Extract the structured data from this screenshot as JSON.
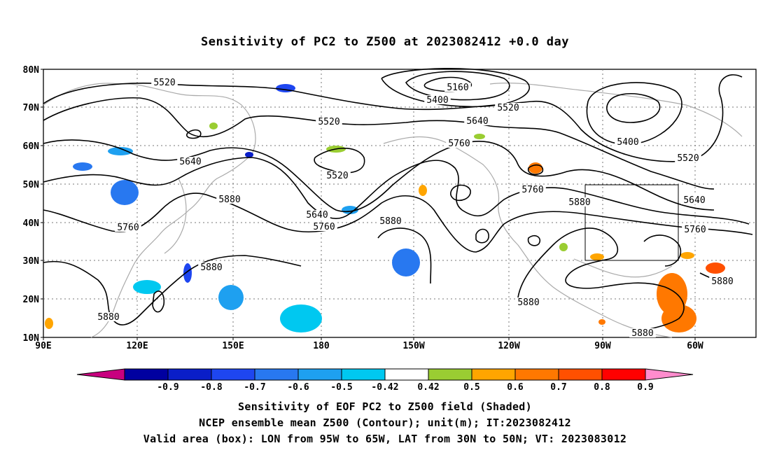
{
  "title": "Sensitivity of PC2 to Z500 at 2023082412 +0.0 day",
  "map": {
    "lat_labels": [
      "80N",
      "70N",
      "60N",
      "50N",
      "40N",
      "30N",
      "20N",
      "10N"
    ],
    "lon_labels": [
      "90E",
      "120E",
      "150E",
      "180",
      "150W",
      "120W",
      "90W",
      "60W"
    ],
    "contours": [
      {
        "value": "5160",
        "label": "5160"
      },
      {
        "value": "5400",
        "label": "5400"
      },
      {
        "value": "5400",
        "label": "5400"
      },
      {
        "value": "5520",
        "label": "5520"
      },
      {
        "value": "5520",
        "label": "5520"
      },
      {
        "value": "5520",
        "label": "5520"
      },
      {
        "value": "5520",
        "label": "5520"
      },
      {
        "value": "5520",
        "label": "5520"
      },
      {
        "value": "5640",
        "label": "5640"
      },
      {
        "value": "5640",
        "label": "5640"
      },
      {
        "value": "5640",
        "label": "5640"
      },
      {
        "value": "5640",
        "label": "5640"
      },
      {
        "value": "5760",
        "label": "5760"
      },
      {
        "value": "5760",
        "label": "5760"
      },
      {
        "value": "5760",
        "label": "5760"
      },
      {
        "value": "5760",
        "label": "5760"
      },
      {
        "value": "5760",
        "label": "5760"
      },
      {
        "value": "5880",
        "label": "5880"
      },
      {
        "value": "5880",
        "label": "5880"
      },
      {
        "value": "5880",
        "label": "5880"
      },
      {
        "value": "5880",
        "label": "5880"
      },
      {
        "value": "5880",
        "label": "5880"
      },
      {
        "value": "5880",
        "label": "5880"
      },
      {
        "value": "5880",
        "label": "5880"
      },
      {
        "value": "5880",
        "label": "5880"
      }
    ],
    "valid_box": {
      "lon_from": "95W",
      "lon_to": "65W",
      "lat_from": "30N",
      "lat_to": "50N"
    }
  },
  "colorbar": {
    "labels": [
      "-0.9",
      "-0.8",
      "-0.7",
      "-0.6",
      "-0.5",
      "-0.42",
      "0.42",
      "0.5",
      "0.6",
      "0.7",
      "0.8",
      "0.9"
    ],
    "colors": [
      "#c8007f",
      "#0000a0",
      "#0a1ec8",
      "#1e46f0",
      "#2878f0",
      "#1ea0f0",
      "#00c8f0",
      "#ffffff",
      "#9acd32",
      "#ffa500",
      "#ff7800",
      "#ff5000",
      "#ff0000",
      "#ff8ccd"
    ]
  },
  "footer": {
    "line1": "Sensitivity of EOF PC2 to Z500 field (Shaded)",
    "line2": "NCEP ensemble mean Z500 (Contour); unit(m); IT:2023082412",
    "line3": "Valid area (box): LON from 95W to 65W, LAT from 30N to 50N; VT: 2023083012"
  }
}
